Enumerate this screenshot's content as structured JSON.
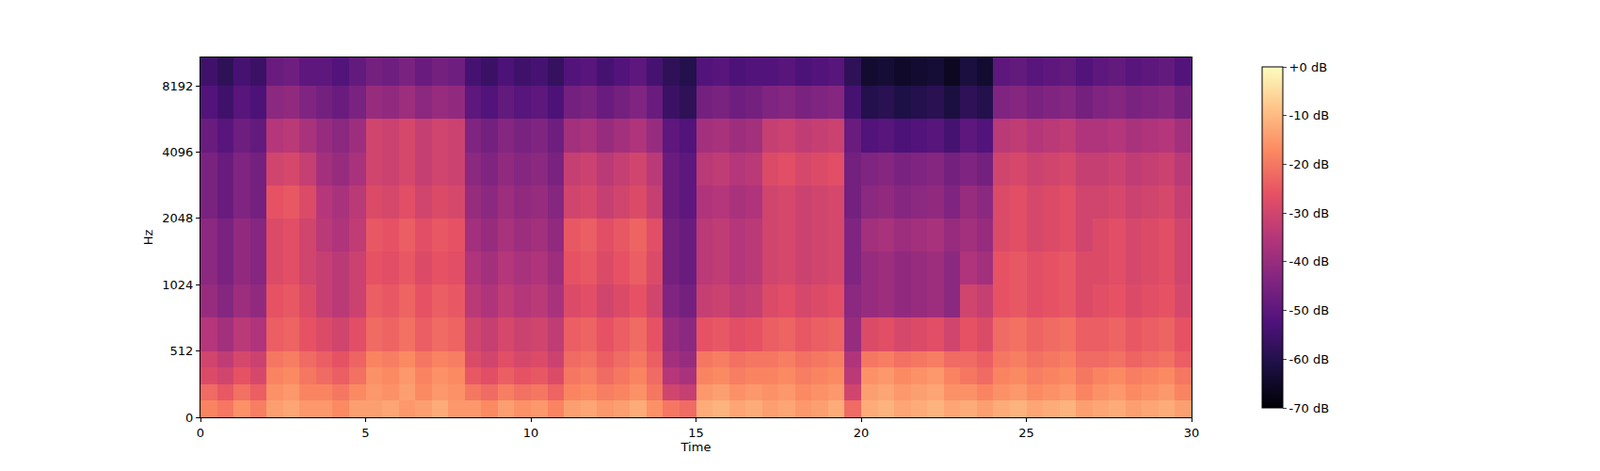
{
  "chart_data": {
    "type": "heatmap",
    "xlabel": "Time",
    "ylabel": "Hz",
    "log": "y",
    "color": "magma",
    "x": [
      0,
      0.5,
      1,
      1.5,
      2,
      2.5,
      3,
      3.5,
      4,
      4.5,
      5,
      5.5,
      6,
      6.5,
      7,
      7.5,
      8,
      8.5,
      9,
      9.5,
      10,
      10.5,
      11,
      11.5,
      12,
      12.5,
      13,
      13.5,
      14,
      14.5,
      15,
      15.5,
      16,
      16.5,
      17,
      17.5,
      18,
      18.5,
      19,
      19.5,
      20,
      20.5,
      21,
      21.5,
      22,
      22.5,
      23,
      23.5,
      24,
      24.5,
      25,
      25.5,
      26,
      26.5,
      27,
      27.5,
      28,
      28.5,
      29,
      29.5,
      30
    ],
    "y": [
      0,
      128,
      256,
      384,
      512,
      724,
      1024,
      1448,
      2048,
      2896,
      4096,
      5793,
      8192,
      11025
    ],
    "z": [
      [
        -18,
        -20,
        -16,
        -19,
        -14,
        -13,
        -15,
        -15,
        -17,
        -14,
        -14,
        -13,
        -15,
        -14,
        -12,
        -15,
        -15,
        -17,
        -14,
        -16,
        -15,
        -18,
        -14,
        -13,
        -15,
        -14,
        -12,
        -16,
        -20,
        -22,
        -12,
        -11,
        -13,
        -12,
        -14,
        -13,
        -15,
        -14,
        -12,
        -22,
        -12,
        -11,
        -13,
        -12,
        -11,
        -13,
        -12,
        -14,
        -12,
        -11,
        -13,
        -12,
        -11,
        -14,
        -13,
        -12,
        -14,
        -13,
        -12,
        -14
      ],
      [
        -22,
        -25,
        -21,
        -24,
        -16,
        -15,
        -18,
        -18,
        -20,
        -17,
        -15,
        -16,
        -14,
        -17,
        -15,
        -16,
        -20,
        -22,
        -19,
        -21,
        -20,
        -23,
        -18,
        -17,
        -19,
        -18,
        -16,
        -20,
        -30,
        -32,
        -15,
        -14,
        -16,
        -15,
        -16,
        -15,
        -17,
        -16,
        -15,
        -30,
        -14,
        -13,
        -15,
        -14,
        -13,
        -16,
        -16,
        -18,
        -16,
        -15,
        -17,
        -16,
        -15,
        -18,
        -16,
        -15,
        -17,
        -16,
        -15,
        -18
      ],
      [
        -28,
        -30,
        -26,
        -29,
        -18,
        -17,
        -20,
        -22,
        -24,
        -21,
        -16,
        -17,
        -15,
        -18,
        -16,
        -17,
        -25,
        -27,
        -24,
        -26,
        -25,
        -28,
        -20,
        -19,
        -22,
        -20,
        -18,
        -22,
        -35,
        -37,
        -18,
        -17,
        -19,
        -18,
        -18,
        -17,
        -19,
        -18,
        -17,
        -34,
        -16,
        -15,
        -17,
        -16,
        -15,
        -18,
        -20,
        -22,
        -18,
        -17,
        -19,
        -18,
        -17,
        -20,
        -18,
        -17,
        -19,
        -18,
        -17,
        -20
      ],
      [
        -30,
        -33,
        -29,
        -31,
        -20,
        -19,
        -22,
        -24,
        -26,
        -23,
        -18,
        -19,
        -17,
        -20,
        -18,
        -19,
        -28,
        -30,
        -27,
        -29,
        -28,
        -31,
        -22,
        -21,
        -24,
        -22,
        -20,
        -24,
        -38,
        -40,
        -20,
        -19,
        -21,
        -20,
        -20,
        -19,
        -21,
        -20,
        -19,
        -36,
        -20,
        -19,
        -21,
        -20,
        -19,
        -22,
        -22,
        -24,
        -20,
        -19,
        -21,
        -20,
        -19,
        -22,
        -22,
        -21,
        -23,
        -22,
        -21,
        -24
      ],
      [
        -35,
        -38,
        -34,
        -36,
        -24,
        -23,
        -26,
        -28,
        -30,
        -27,
        -22,
        -23,
        -21,
        -24,
        -22,
        -23,
        -30,
        -32,
        -29,
        -31,
        -30,
        -33,
        -24,
        -23,
        -26,
        -24,
        -22,
        -26,
        -40,
        -42,
        -26,
        -25,
        -27,
        -26,
        -24,
        -23,
        -25,
        -24,
        -23,
        -40,
        -28,
        -27,
        -29,
        -28,
        -27,
        -30,
        -26,
        -28,
        -22,
        -21,
        -23,
        -22,
        -21,
        -24,
        -24,
        -23,
        -25,
        -24,
        -23,
        -26
      ],
      [
        -40,
        -43,
        -39,
        -41,
        -26,
        -25,
        -28,
        -32,
        -34,
        -31,
        -24,
        -25,
        -23,
        -26,
        -24,
        -25,
        -34,
        -36,
        -33,
        -35,
        -34,
        -37,
        -28,
        -27,
        -30,
        -28,
        -26,
        -30,
        -44,
        -46,
        -32,
        -31,
        -33,
        -32,
        -28,
        -27,
        -29,
        -28,
        -27,
        -42,
        -40,
        -39,
        -41,
        -40,
        -39,
        -42,
        -30,
        -32,
        -26,
        -25,
        -27,
        -26,
        -25,
        -28,
        -27,
        -26,
        -28,
        -27,
        -26,
        -29
      ],
      [
        -42,
        -45,
        -41,
        -43,
        -28,
        -27,
        -30,
        -32,
        -34,
        -31,
        -26,
        -27,
        -25,
        -28,
        -26,
        -27,
        -36,
        -38,
        -35,
        -37,
        -36,
        -39,
        -26,
        -25,
        -28,
        -26,
        -24,
        -28,
        -46,
        -48,
        -34,
        -33,
        -35,
        -34,
        -30,
        -29,
        -31,
        -30,
        -29,
        -44,
        -40,
        -39,
        -41,
        -40,
        -39,
        -42,
        -36,
        -38,
        -26,
        -25,
        -27,
        -26,
        -25,
        -28,
        -28,
        -27,
        -29,
        -28,
        -27,
        -30
      ],
      [
        -42,
        -45,
        -41,
        -43,
        -28,
        -27,
        -30,
        -34,
        -36,
        -33,
        -25,
        -26,
        -24,
        -27,
        -25,
        -26,
        -38,
        -40,
        -37,
        -39,
        -38,
        -41,
        -25,
        -24,
        -27,
        -25,
        -23,
        -27,
        -46,
        -48,
        -34,
        -33,
        -35,
        -34,
        -30,
        -29,
        -31,
        -30,
        -29,
        -44,
        -38,
        -37,
        -39,
        -38,
        -37,
        -40,
        -38,
        -40,
        -28,
        -27,
        -29,
        -28,
        -27,
        -30,
        -28,
        -27,
        -29,
        -28,
        -27,
        -30
      ],
      [
        -45,
        -48,
        -44,
        -46,
        -26,
        -25,
        -28,
        -35,
        -37,
        -34,
        -28,
        -29,
        -27,
        -30,
        -28,
        -29,
        -40,
        -42,
        -39,
        -41,
        -40,
        -43,
        -30,
        -29,
        -32,
        -30,
        -28,
        -32,
        -48,
        -50,
        -36,
        -35,
        -37,
        -36,
        -30,
        -29,
        -31,
        -30,
        -29,
        -46,
        -42,
        -41,
        -43,
        -42,
        -41,
        -44,
        -40,
        -42,
        -28,
        -27,
        -29,
        -28,
        -27,
        -30,
        -30,
        -29,
        -31,
        -30,
        -29,
        -32
      ],
      [
        -45,
        -48,
        -44,
        -46,
        -30,
        -29,
        -32,
        -38,
        -40,
        -37,
        -30,
        -31,
        -29,
        -32,
        -30,
        -31,
        -42,
        -44,
        -41,
        -43,
        -42,
        -45,
        -32,
        -31,
        -34,
        -32,
        -30,
        -34,
        -48,
        -50,
        -34,
        -33,
        -35,
        -34,
        -28,
        -27,
        -29,
        -28,
        -27,
        -46,
        -44,
        -43,
        -45,
        -44,
        -43,
        -46,
        -44,
        -46,
        -30,
        -29,
        -31,
        -30,
        -29,
        -32,
        -32,
        -31,
        -33,
        -32,
        -31,
        -34
      ],
      [
        -48,
        -51,
        -47,
        -49,
        -35,
        -34,
        -37,
        -40,
        -42,
        -39,
        -30,
        -31,
        -29,
        -32,
        -30,
        -31,
        -44,
        -46,
        -43,
        -45,
        -44,
        -47,
        -38,
        -37,
        -40,
        -38,
        -36,
        -40,
        -50,
        -52,
        -38,
        -37,
        -39,
        -38,
        -32,
        -31,
        -33,
        -32,
        -31,
        -48,
        -52,
        -51,
        -53,
        -52,
        -51,
        -54,
        -50,
        -52,
        -34,
        -33,
        -35,
        -34,
        -33,
        -36,
        -36,
        -35,
        -37,
        -36,
        -35,
        -38
      ],
      [
        -52,
        -55,
        -51,
        -53,
        -42,
        -41,
        -44,
        -46,
        -48,
        -45,
        -40,
        -41,
        -39,
        -42,
        -40,
        -41,
        -50,
        -52,
        -49,
        -51,
        -50,
        -53,
        -46,
        -45,
        -48,
        -46,
        -44,
        -48,
        -56,
        -58,
        -46,
        -45,
        -47,
        -46,
        -44,
        -43,
        -45,
        -44,
        -43,
        -54,
        -60,
        -59,
        -61,
        -60,
        -59,
        -62,
        -58,
        -60,
        -44,
        -43,
        -45,
        -44,
        -43,
        -46,
        -44,
        -43,
        -45,
        -44,
        -43,
        -46
      ],
      [
        -55,
        -58,
        -54,
        -56,
        -48,
        -47,
        -50,
        -50,
        -52,
        -49,
        -46,
        -47,
        -45,
        -48,
        -46,
        -47,
        -54,
        -56,
        -53,
        -55,
        -54,
        -57,
        -52,
        -51,
        -54,
        -52,
        -50,
        -54,
        -58,
        -60,
        -52,
        -51,
        -53,
        -52,
        -52,
        -51,
        -53,
        -52,
        -51,
        -58,
        -64,
        -63,
        -65,
        -64,
        -63,
        -66,
        -62,
        -64,
        -50,
        -49,
        -51,
        -50,
        -49,
        -52,
        -50,
        -49,
        -51,
        -50,
        -49,
        -52
      ]
    ],
    "xlim": [
      0,
      30
    ],
    "xticks": [
      0,
      5,
      10,
      15,
      20,
      25,
      30
    ],
    "ylim": [
      0,
      11025
    ],
    "yticks": [
      0,
      512,
      1024,
      2048,
      4096,
      8192
    ],
    "colorbar": {
      "range": [
        -70,
        0
      ],
      "ticks": [
        {
          "value": 0,
          "label": "+0 dB"
        },
        {
          "value": -10,
          "label": "-10 dB"
        },
        {
          "value": -20,
          "label": "-20 dB"
        },
        {
          "value": -30,
          "label": "-30 dB"
        },
        {
          "value": -40,
          "label": "-40 dB"
        },
        {
          "value": -50,
          "label": "-50 dB"
        },
        {
          "value": -60,
          "label": "-60 dB"
        },
        {
          "value": -70,
          "label": "-70 dB"
        }
      ]
    }
  }
}
